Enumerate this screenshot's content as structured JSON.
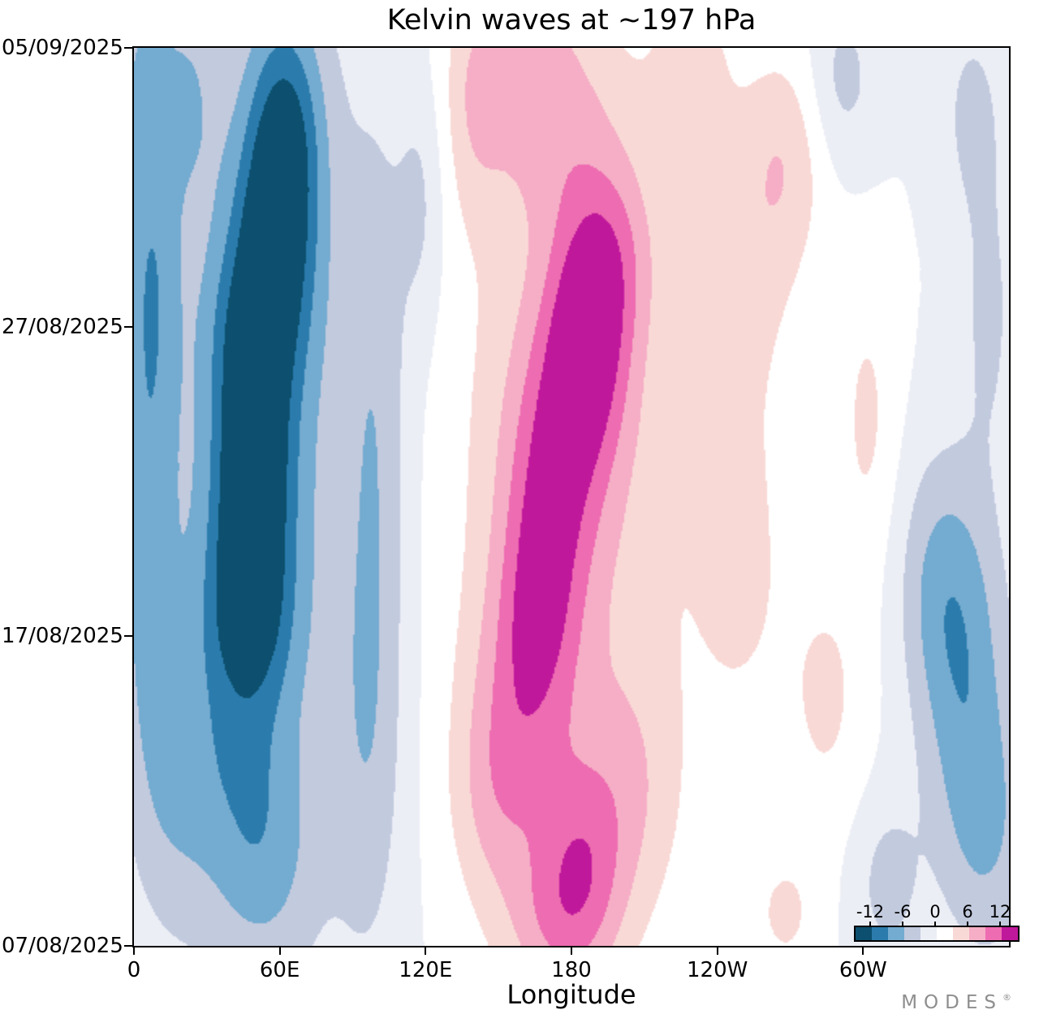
{
  "brand": {
    "name": "MODES",
    "mark": "®"
  },
  "chart_data": {
    "type": "heatmap",
    "title": "Kelvin waves at ~197 hPa",
    "xlabel": "Longitude",
    "lon_range": [
      0,
      360
    ],
    "t_range": [
      0,
      29
    ],
    "x_ticks": [
      {
        "label": "0",
        "lon": 0
      },
      {
        "label": "60E",
        "lon": 60
      },
      {
        "label": "120E",
        "lon": 120
      },
      {
        "label": "180",
        "lon": 180
      },
      {
        "label": "120W",
        "lon": 240
      },
      {
        "label": "60W",
        "lon": 300
      }
    ],
    "y_ticks": [
      {
        "label": "05/09/2025",
        "t": 29
      },
      {
        "label": "27/08/2025",
        "t": 20
      },
      {
        "label": "17/08/2025",
        "t": 10
      },
      {
        "label": "07/08/2025",
        "t": 0
      }
    ],
    "colorbar": {
      "tick_labels": [
        "-12",
        "-6",
        "0",
        "6",
        "12"
      ],
      "tick_values": [
        -12,
        -6,
        0,
        6,
        12
      ],
      "levels": [
        -15,
        -12,
        -9,
        -6,
        -3,
        0,
        3,
        6,
        9,
        12,
        15
      ],
      "colors": [
        "#0c4f6e",
        "#2b7cad",
        "#74abd0",
        "#c2cade",
        "#eceef6",
        "#ffffff",
        "#f9d9d6",
        "#f5aec6",
        "#ee6cb1",
        "#c0189b"
      ]
    },
    "field_model": {
      "encoding": "gaussian anomalies: [amplitude, center_lon_deg, center_time_days_since_07/08/2025, sigma_lon_deg, sigma_time_days]",
      "anomalies": [
        [
          -6,
          55,
          16,
          30,
          11
        ],
        [
          -9,
          62,
          26.5,
          11,
          2.8
        ],
        [
          -8,
          57,
          23,
          12,
          2.5
        ],
        [
          -6,
          50,
          20,
          14,
          2.2
        ],
        [
          -9,
          49,
          16.5,
          11,
          2.6
        ],
        [
          -7,
          47,
          13,
          12,
          2.5
        ],
        [
          -6,
          46,
          10.5,
          13,
          2.0
        ],
        [
          -4,
          44,
          6.5,
          15,
          2.5
        ],
        [
          -4.5,
          52,
          2.5,
          16,
          2.5
        ],
        [
          -7,
          6,
          22,
          9,
          5
        ],
        [
          -5,
          4,
          12,
          10,
          5
        ],
        [
          -4,
          16,
          5,
          13,
          3.5
        ],
        [
          -4,
          22,
          27.5,
          9,
          2.5
        ],
        [
          -3,
          2,
          28.5,
          8,
          2
        ],
        [
          -7,
          342,
          9,
          14,
          4
        ],
        [
          -5,
          352,
          3.5,
          14,
          3
        ],
        [
          -4,
          330,
          12,
          12,
          3
        ],
        [
          -3.5,
          352,
          20.5,
          9,
          3.5
        ],
        [
          -3.5,
          345,
          27,
          10,
          2.5
        ],
        [
          -4,
          310,
          2,
          10,
          2
        ],
        [
          -4,
          292,
          28,
          10,
          2
        ],
        [
          -4,
          100,
          17,
          9,
          7
        ],
        [
          -3.5,
          96,
          6,
          10,
          5
        ],
        [
          -3.5,
          118,
          24,
          7,
          3
        ],
        [
          6,
          180,
          16,
          34,
          9
        ],
        [
          8,
          187,
          20,
          12,
          2.4
        ],
        [
          6,
          178,
          17,
          15,
          2.5
        ],
        [
          5,
          170,
          13.5,
          13,
          2.5
        ],
        [
          5,
          166,
          10.5,
          12,
          2.5
        ],
        [
          5,
          196,
          22.5,
          13,
          2.2
        ],
        [
          4,
          174,
          26.5,
          20,
          2.5
        ],
        [
          4,
          158,
          29,
          16,
          2
        ],
        [
          5,
          158,
          7.5,
          16,
          3
        ],
        [
          4,
          148,
          4.5,
          13,
          2.5
        ],
        [
          7,
          184,
          2.5,
          13,
          2.5
        ],
        [
          5,
          172,
          0.5,
          16,
          2
        ],
        [
          4,
          205,
          5,
          15,
          3
        ],
        [
          3.5,
          252,
          22,
          16,
          3.5
        ],
        [
          4.5,
          268,
          25.5,
          12,
          2.5
        ],
        [
          3.5,
          250,
          12.5,
          14,
          4
        ],
        [
          3.5,
          285,
          8,
          12,
          3
        ],
        [
          3.5,
          302,
          17,
          9,
          3.5
        ],
        [
          3.5,
          140,
          27,
          9,
          2.5
        ],
        [
          3.5,
          230,
          28.5,
          12,
          2
        ],
        [
          3.5,
          268,
          1,
          10,
          1.5
        ]
      ]
    }
  }
}
